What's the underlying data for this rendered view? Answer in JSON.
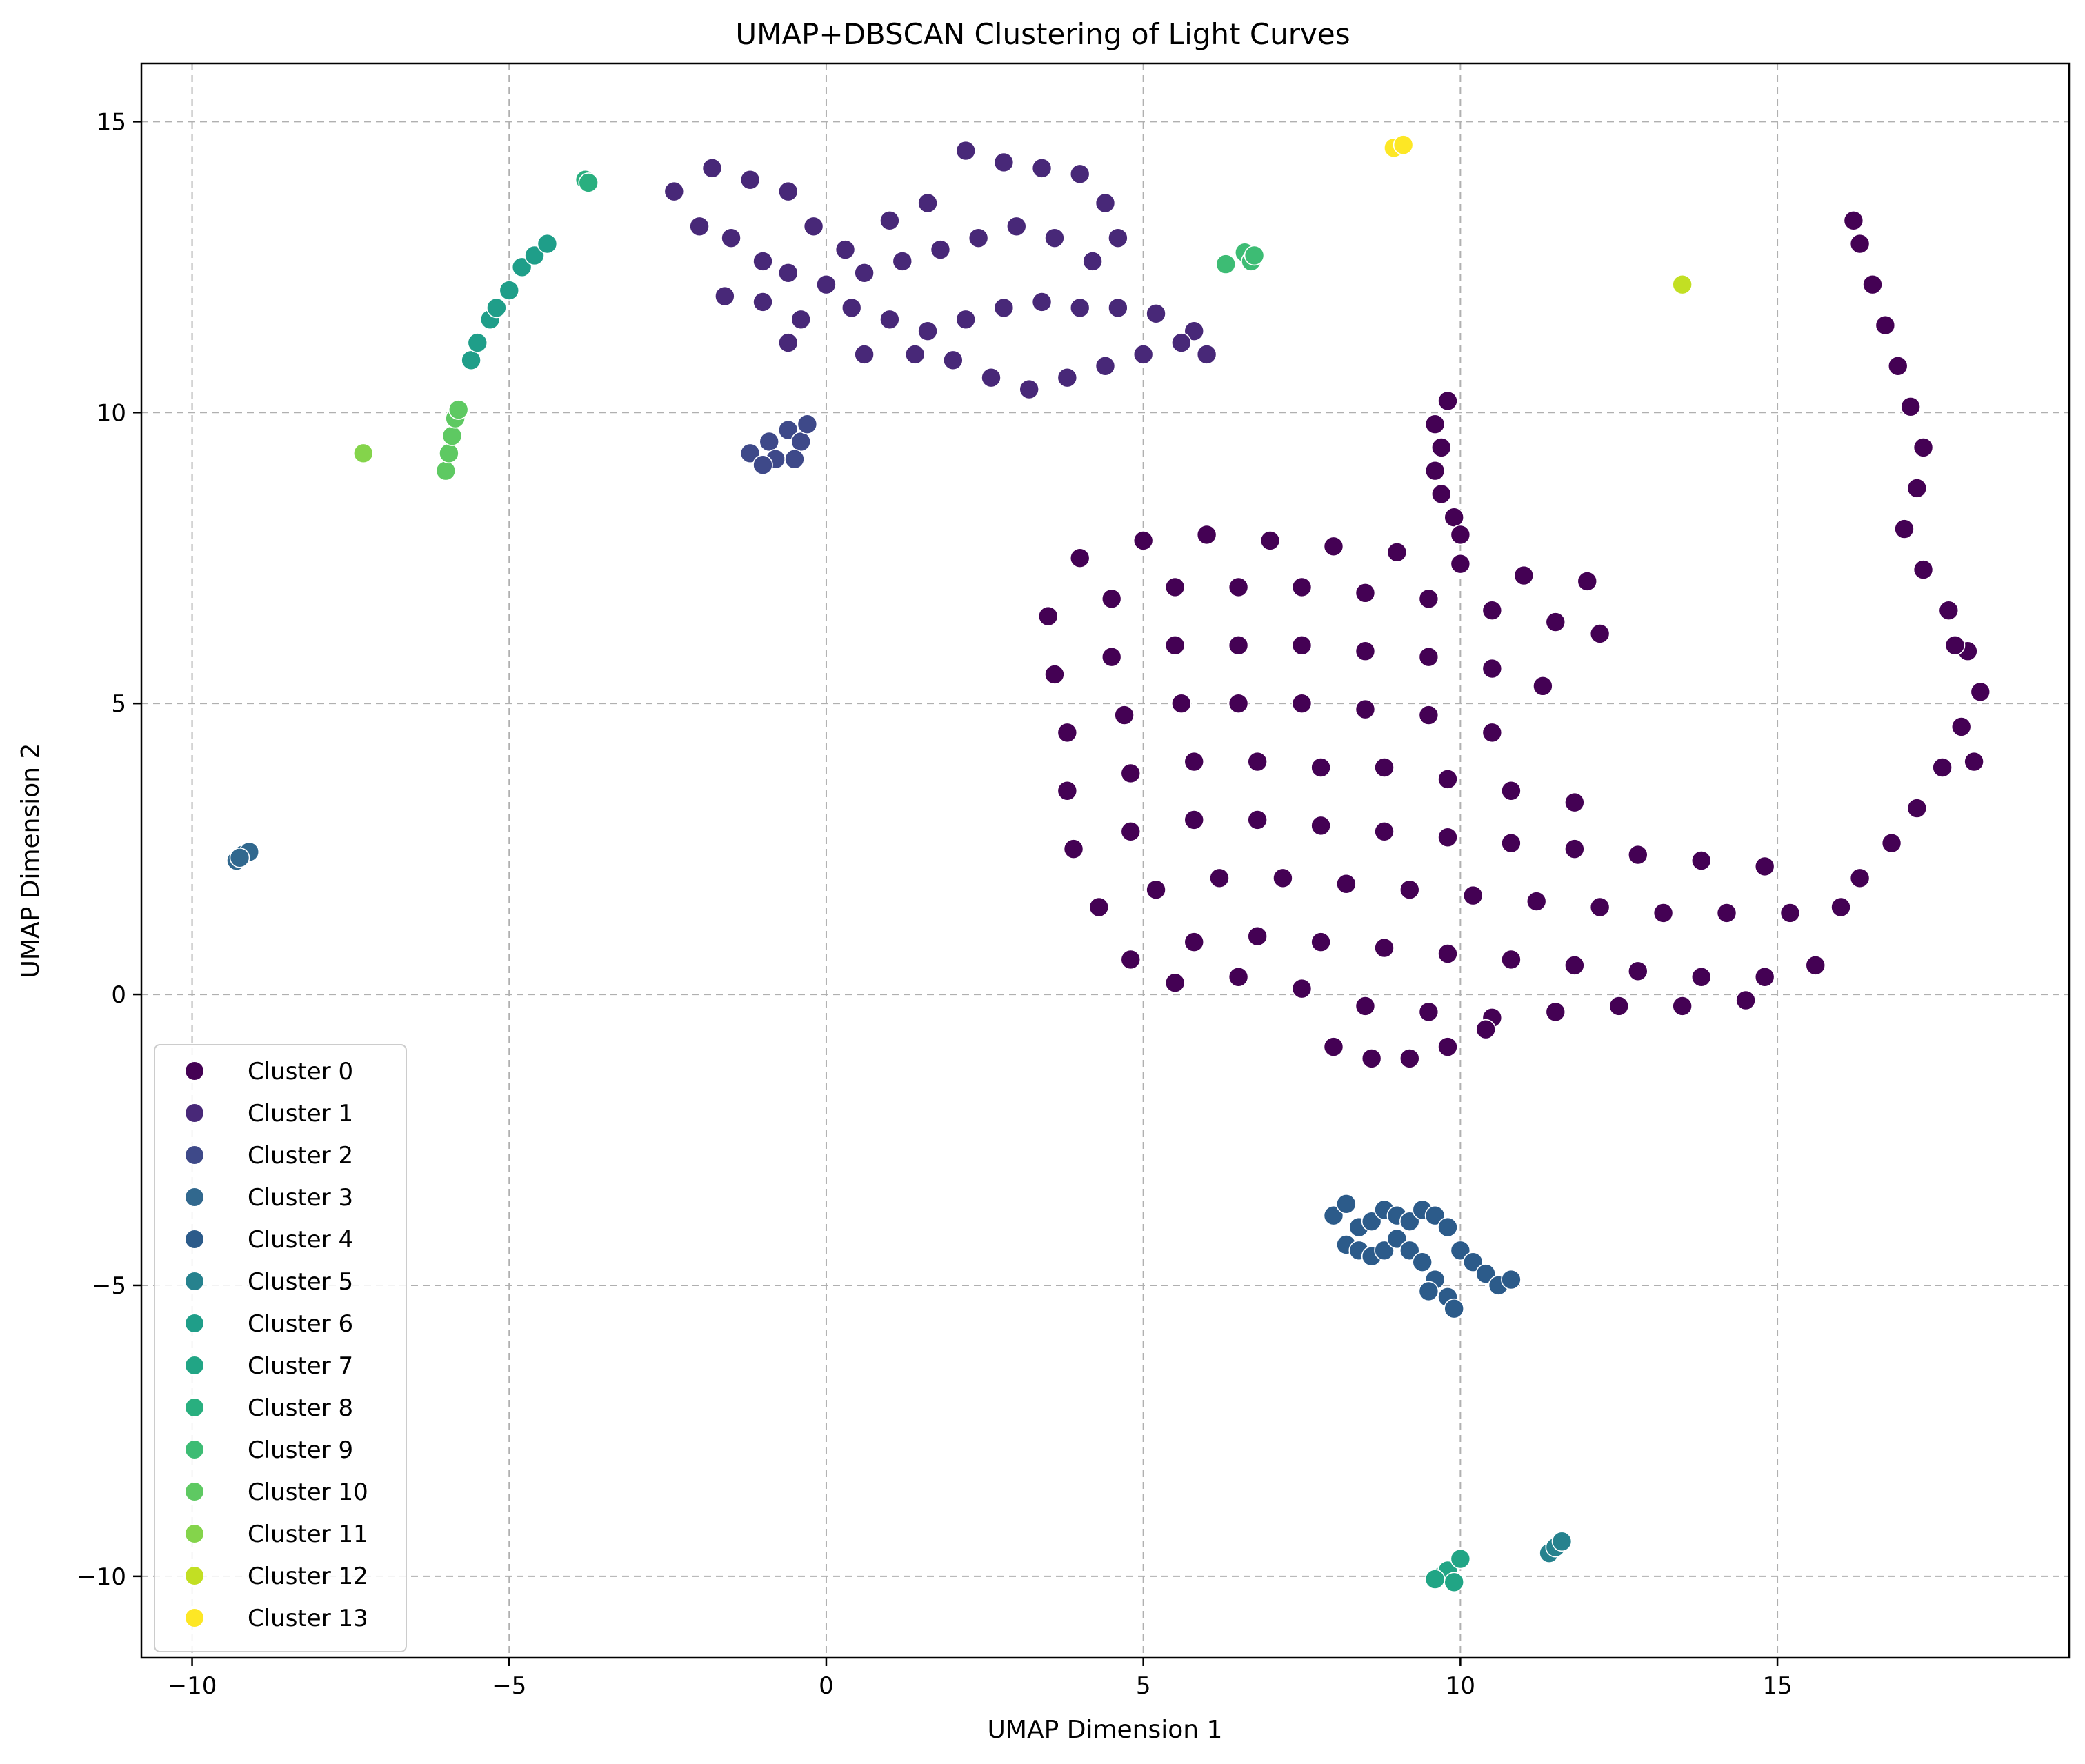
{
  "chart_data": {
    "type": "scatter",
    "title": "UMAP+DBSCAN Clustering of Light Curves",
    "xlabel": "UMAP Dimension 1",
    "ylabel": "UMAP Dimension 2",
    "xlim": [
      -10.8,
      19.6
    ],
    "ylim": [
      -11.4,
      16.0
    ],
    "xticks": [
      -10,
      -5,
      0,
      5,
      10,
      15
    ],
    "yticks": [
      -10,
      -5,
      0,
      5,
      10,
      15
    ],
    "xtick_labels": [
      "−10",
      "−5",
      "0",
      "5",
      "10",
      "15"
    ],
    "ytick_labels": [
      "−10",
      "−5",
      "0",
      "5",
      "10",
      "15"
    ],
    "grid": true,
    "legend_position": "lower-left",
    "series": [
      {
        "name": "Cluster 0",
        "color": "#440154",
        "points": [
          [
            4.0,
            7.5
          ],
          [
            5.0,
            7.8
          ],
          [
            6.0,
            7.9
          ],
          [
            7.0,
            7.8
          ],
          [
            8.0,
            7.7
          ],
          [
            9.0,
            7.6
          ],
          [
            10.0,
            7.4
          ],
          [
            11.0,
            7.2
          ],
          [
            12.0,
            7.1
          ],
          [
            3.5,
            6.5
          ],
          [
            4.5,
            6.8
          ],
          [
            5.5,
            7.0
          ],
          [
            6.5,
            7.0
          ],
          [
            7.5,
            7.0
          ],
          [
            8.5,
            6.9
          ],
          [
            9.5,
            6.8
          ],
          [
            10.5,
            6.6
          ],
          [
            11.5,
            6.4
          ],
          [
            12.2,
            6.2
          ],
          [
            3.6,
            5.5
          ],
          [
            4.5,
            5.8
          ],
          [
            5.5,
            6.0
          ],
          [
            6.5,
            6.0
          ],
          [
            7.5,
            6.0
          ],
          [
            8.5,
            5.9
          ],
          [
            9.5,
            5.8
          ],
          [
            10.5,
            5.6
          ],
          [
            11.3,
            5.3
          ],
          [
            3.8,
            4.5
          ],
          [
            4.7,
            4.8
          ],
          [
            5.6,
            5.0
          ],
          [
            6.5,
            5.0
          ],
          [
            7.5,
            5.0
          ],
          [
            8.5,
            4.9
          ],
          [
            9.5,
            4.8
          ],
          [
            10.5,
            4.5
          ],
          [
            3.8,
            3.5
          ],
          [
            4.8,
            3.8
          ],
          [
            5.8,
            4.0
          ],
          [
            6.8,
            4.0
          ],
          [
            7.8,
            3.9
          ],
          [
            8.8,
            3.9
          ],
          [
            9.8,
            3.7
          ],
          [
            10.8,
            3.5
          ],
          [
            11.8,
            3.3
          ],
          [
            3.9,
            2.5
          ],
          [
            4.8,
            2.8
          ],
          [
            5.8,
            3.0
          ],
          [
            6.8,
            3.0
          ],
          [
            7.8,
            2.9
          ],
          [
            8.8,
            2.8
          ],
          [
            9.8,
            2.7
          ],
          [
            10.8,
            2.6
          ],
          [
            11.8,
            2.5
          ],
          [
            12.8,
            2.4
          ],
          [
            13.8,
            2.3
          ],
          [
            14.8,
            2.2
          ],
          [
            4.3,
            1.5
          ],
          [
            5.2,
            1.8
          ],
          [
            6.2,
            2.0
          ],
          [
            7.2,
            2.0
          ],
          [
            8.2,
            1.9
          ],
          [
            9.2,
            1.8
          ],
          [
            10.2,
            1.7
          ],
          [
            11.2,
            1.6
          ],
          [
            12.2,
            1.5
          ],
          [
            13.2,
            1.4
          ],
          [
            14.2,
            1.4
          ],
          [
            15.2,
            1.4
          ],
          [
            16.0,
            1.5
          ],
          [
            4.8,
            0.6
          ],
          [
            5.8,
            0.9
          ],
          [
            6.8,
            1.0
          ],
          [
            7.8,
            0.9
          ],
          [
            8.8,
            0.8
          ],
          [
            9.8,
            0.7
          ],
          [
            10.8,
            0.6
          ],
          [
            11.8,
            0.5
          ],
          [
            12.8,
            0.4
          ],
          [
            13.8,
            0.3
          ],
          [
            14.8,
            0.3
          ],
          [
            15.6,
            0.5
          ],
          [
            5.5,
            0.2
          ],
          [
            6.5,
            0.3
          ],
          [
            7.5,
            0.1
          ],
          [
            8.5,
            -0.2
          ],
          [
            9.5,
            -0.3
          ],
          [
            10.5,
            -0.4
          ],
          [
            11.5,
            -0.3
          ],
          [
            12.5,
            -0.2
          ],
          [
            13.5,
            -0.2
          ],
          [
            14.5,
            -0.1
          ],
          [
            8.0,
            -0.9
          ],
          [
            8.6,
            -1.1
          ],
          [
            9.2,
            -1.1
          ],
          [
            9.8,
            -0.9
          ],
          [
            10.4,
            -0.6
          ],
          [
            9.6,
            9.8
          ],
          [
            9.8,
            10.2
          ],
          [
            9.7,
            9.4
          ],
          [
            9.6,
            9.0
          ],
          [
            9.7,
            8.6
          ],
          [
            9.9,
            8.2
          ],
          [
            10.0,
            7.9
          ],
          [
            16.3,
            2.0
          ],
          [
            16.8,
            2.6
          ],
          [
            17.2,
            3.2
          ],
          [
            17.6,
            3.9
          ],
          [
            17.9,
            4.6
          ],
          [
            18.2,
            5.2
          ],
          [
            18.0,
            5.9
          ],
          [
            17.7,
            6.6
          ],
          [
            17.3,
            7.3
          ],
          [
            17.0,
            8.0
          ],
          [
            17.2,
            8.7
          ],
          [
            17.3,
            9.4
          ],
          [
            17.1,
            10.1
          ],
          [
            16.9,
            10.8
          ],
          [
            16.7,
            11.5
          ],
          [
            16.5,
            12.2
          ],
          [
            16.3,
            12.9
          ],
          [
            16.2,
            13.3
          ],
          [
            17.8,
            6.0
          ],
          [
            18.1,
            4.0
          ]
        ]
      },
      {
        "name": "Cluster 1",
        "color": "#482878",
        "points": [
          [
            -2.4,
            13.8
          ],
          [
            -1.8,
            14.2
          ],
          [
            -1.2,
            14.0
          ],
          [
            -0.6,
            13.8
          ],
          [
            -0.2,
            13.2
          ],
          [
            0.3,
            12.8
          ],
          [
            1.0,
            13.3
          ],
          [
            1.6,
            13.6
          ],
          [
            2.2,
            14.5
          ],
          [
            2.8,
            14.3
          ],
          [
            3.4,
            14.2
          ],
          [
            4.0,
            14.1
          ],
          [
            4.4,
            13.6
          ],
          [
            4.6,
            13.0
          ],
          [
            -2.0,
            13.2
          ],
          [
            -1.5,
            13.0
          ],
          [
            -1.0,
            12.6
          ],
          [
            -0.6,
            12.4
          ],
          [
            0.0,
            12.2
          ],
          [
            0.6,
            12.4
          ],
          [
            1.2,
            12.6
          ],
          [
            1.8,
            12.8
          ],
          [
            2.4,
            13.0
          ],
          [
            3.0,
            13.2
          ],
          [
            3.6,
            13.0
          ],
          [
            4.2,
            12.6
          ],
          [
            -1.6,
            12.0
          ],
          [
            -1.0,
            11.9
          ],
          [
            -0.4,
            11.6
          ],
          [
            0.4,
            11.8
          ],
          [
            1.0,
            11.6
          ],
          [
            1.6,
            11.4
          ],
          [
            2.2,
            11.6
          ],
          [
            2.8,
            11.8
          ],
          [
            3.4,
            11.9
          ],
          [
            4.0,
            11.8
          ],
          [
            4.6,
            11.8
          ],
          [
            5.2,
            11.7
          ],
          [
            5.8,
            11.4
          ],
          [
            -0.6,
            11.2
          ],
          [
            0.6,
            11.0
          ],
          [
            1.4,
            11.0
          ],
          [
            2.0,
            10.9
          ],
          [
            2.6,
            10.6
          ],
          [
            3.2,
            10.4
          ],
          [
            3.8,
            10.6
          ],
          [
            4.4,
            10.8
          ],
          [
            5.0,
            11.0
          ],
          [
            5.6,
            11.2
          ],
          [
            6.0,
            11.0
          ]
        ]
      },
      {
        "name": "Cluster 2",
        "color": "#3e4989",
        "points": [
          [
            -1.2,
            9.3
          ],
          [
            -0.9,
            9.5
          ],
          [
            -0.6,
            9.7
          ],
          [
            -0.4,
            9.5
          ],
          [
            -0.8,
            9.2
          ],
          [
            -0.5,
            9.2
          ],
          [
            -0.3,
            9.8
          ],
          [
            -1.0,
            9.1
          ]
        ]
      },
      {
        "name": "Cluster 3",
        "color": "#31688e",
        "points": [
          [
            -9.3,
            2.3
          ],
          [
            -9.2,
            2.4
          ],
          [
            -9.1,
            2.45
          ],
          [
            -9.25,
            2.35
          ]
        ]
      },
      {
        "name": "Cluster 4",
        "color": "#2c5b8a",
        "points": [
          [
            8.0,
            -3.8
          ],
          [
            8.2,
            -3.6
          ],
          [
            8.4,
            -4.0
          ],
          [
            8.6,
            -3.9
          ],
          [
            8.8,
            -3.7
          ],
          [
            9.0,
            -3.8
          ],
          [
            9.2,
            -3.9
          ],
          [
            9.4,
            -3.7
          ],
          [
            9.6,
            -3.8
          ],
          [
            9.8,
            -4.0
          ],
          [
            8.2,
            -4.3
          ],
          [
            8.4,
            -4.4
          ],
          [
            8.6,
            -4.5
          ],
          [
            8.8,
            -4.4
          ],
          [
            9.0,
            -4.2
          ],
          [
            9.2,
            -4.4
          ],
          [
            9.4,
            -4.6
          ],
          [
            9.6,
            -4.9
          ],
          [
            9.8,
            -5.2
          ],
          [
            10.0,
            -4.4
          ],
          [
            10.2,
            -4.6
          ],
          [
            10.4,
            -4.8
          ],
          [
            10.6,
            -5.0
          ],
          [
            10.8,
            -4.9
          ],
          [
            9.9,
            -5.4
          ],
          [
            9.5,
            -5.1
          ]
        ]
      },
      {
        "name": "Cluster 5",
        "color": "#26828e",
        "points": [
          [
            11.4,
            -9.6
          ],
          [
            11.5,
            -9.5
          ],
          [
            11.6,
            -9.4
          ]
        ]
      },
      {
        "name": "Cluster 6",
        "color": "#1f9e89",
        "points": [
          [
            -5.6,
            10.9
          ],
          [
            -5.3,
            11.6
          ],
          [
            -5.0,
            12.1
          ],
          [
            -4.8,
            12.5
          ],
          [
            -4.6,
            12.7
          ],
          [
            -4.4,
            12.9
          ],
          [
            -5.5,
            11.2
          ],
          [
            -5.2,
            11.8
          ]
        ]
      },
      {
        "name": "Cluster 7",
        "color": "#21a585",
        "points": [
          [
            9.7,
            -10.0
          ],
          [
            9.8,
            -9.9
          ],
          [
            9.9,
            -10.1
          ],
          [
            10.0,
            -9.7
          ],
          [
            9.6,
            -10.05
          ]
        ]
      },
      {
        "name": "Cluster 8",
        "color": "#29af7f",
        "points": [
          [
            -3.8,
            14.0
          ],
          [
            -3.75,
            13.95
          ]
        ]
      },
      {
        "name": "Cluster 9",
        "color": "#3dbc74",
        "points": [
          [
            6.3,
            12.55
          ],
          [
            6.6,
            12.75
          ],
          [
            6.7,
            12.6
          ],
          [
            6.75,
            12.7
          ]
        ]
      },
      {
        "name": "Cluster 10",
        "color": "#5ec962",
        "points": [
          [
            -6.0,
            9.0
          ],
          [
            -5.95,
            9.3
          ],
          [
            -5.9,
            9.6
          ],
          [
            -5.85,
            9.9
          ],
          [
            -5.8,
            10.05
          ]
        ]
      },
      {
        "name": "Cluster 11",
        "color": "#84d44b",
        "points": [
          [
            -7.3,
            9.3
          ]
        ]
      },
      {
        "name": "Cluster 12",
        "color": "#c2df23",
        "points": [
          [
            13.5,
            12.2
          ]
        ]
      },
      {
        "name": "Cluster 13",
        "color": "#fde725",
        "points": [
          [
            8.95,
            14.55
          ],
          [
            9.1,
            14.6
          ]
        ]
      }
    ]
  }
}
